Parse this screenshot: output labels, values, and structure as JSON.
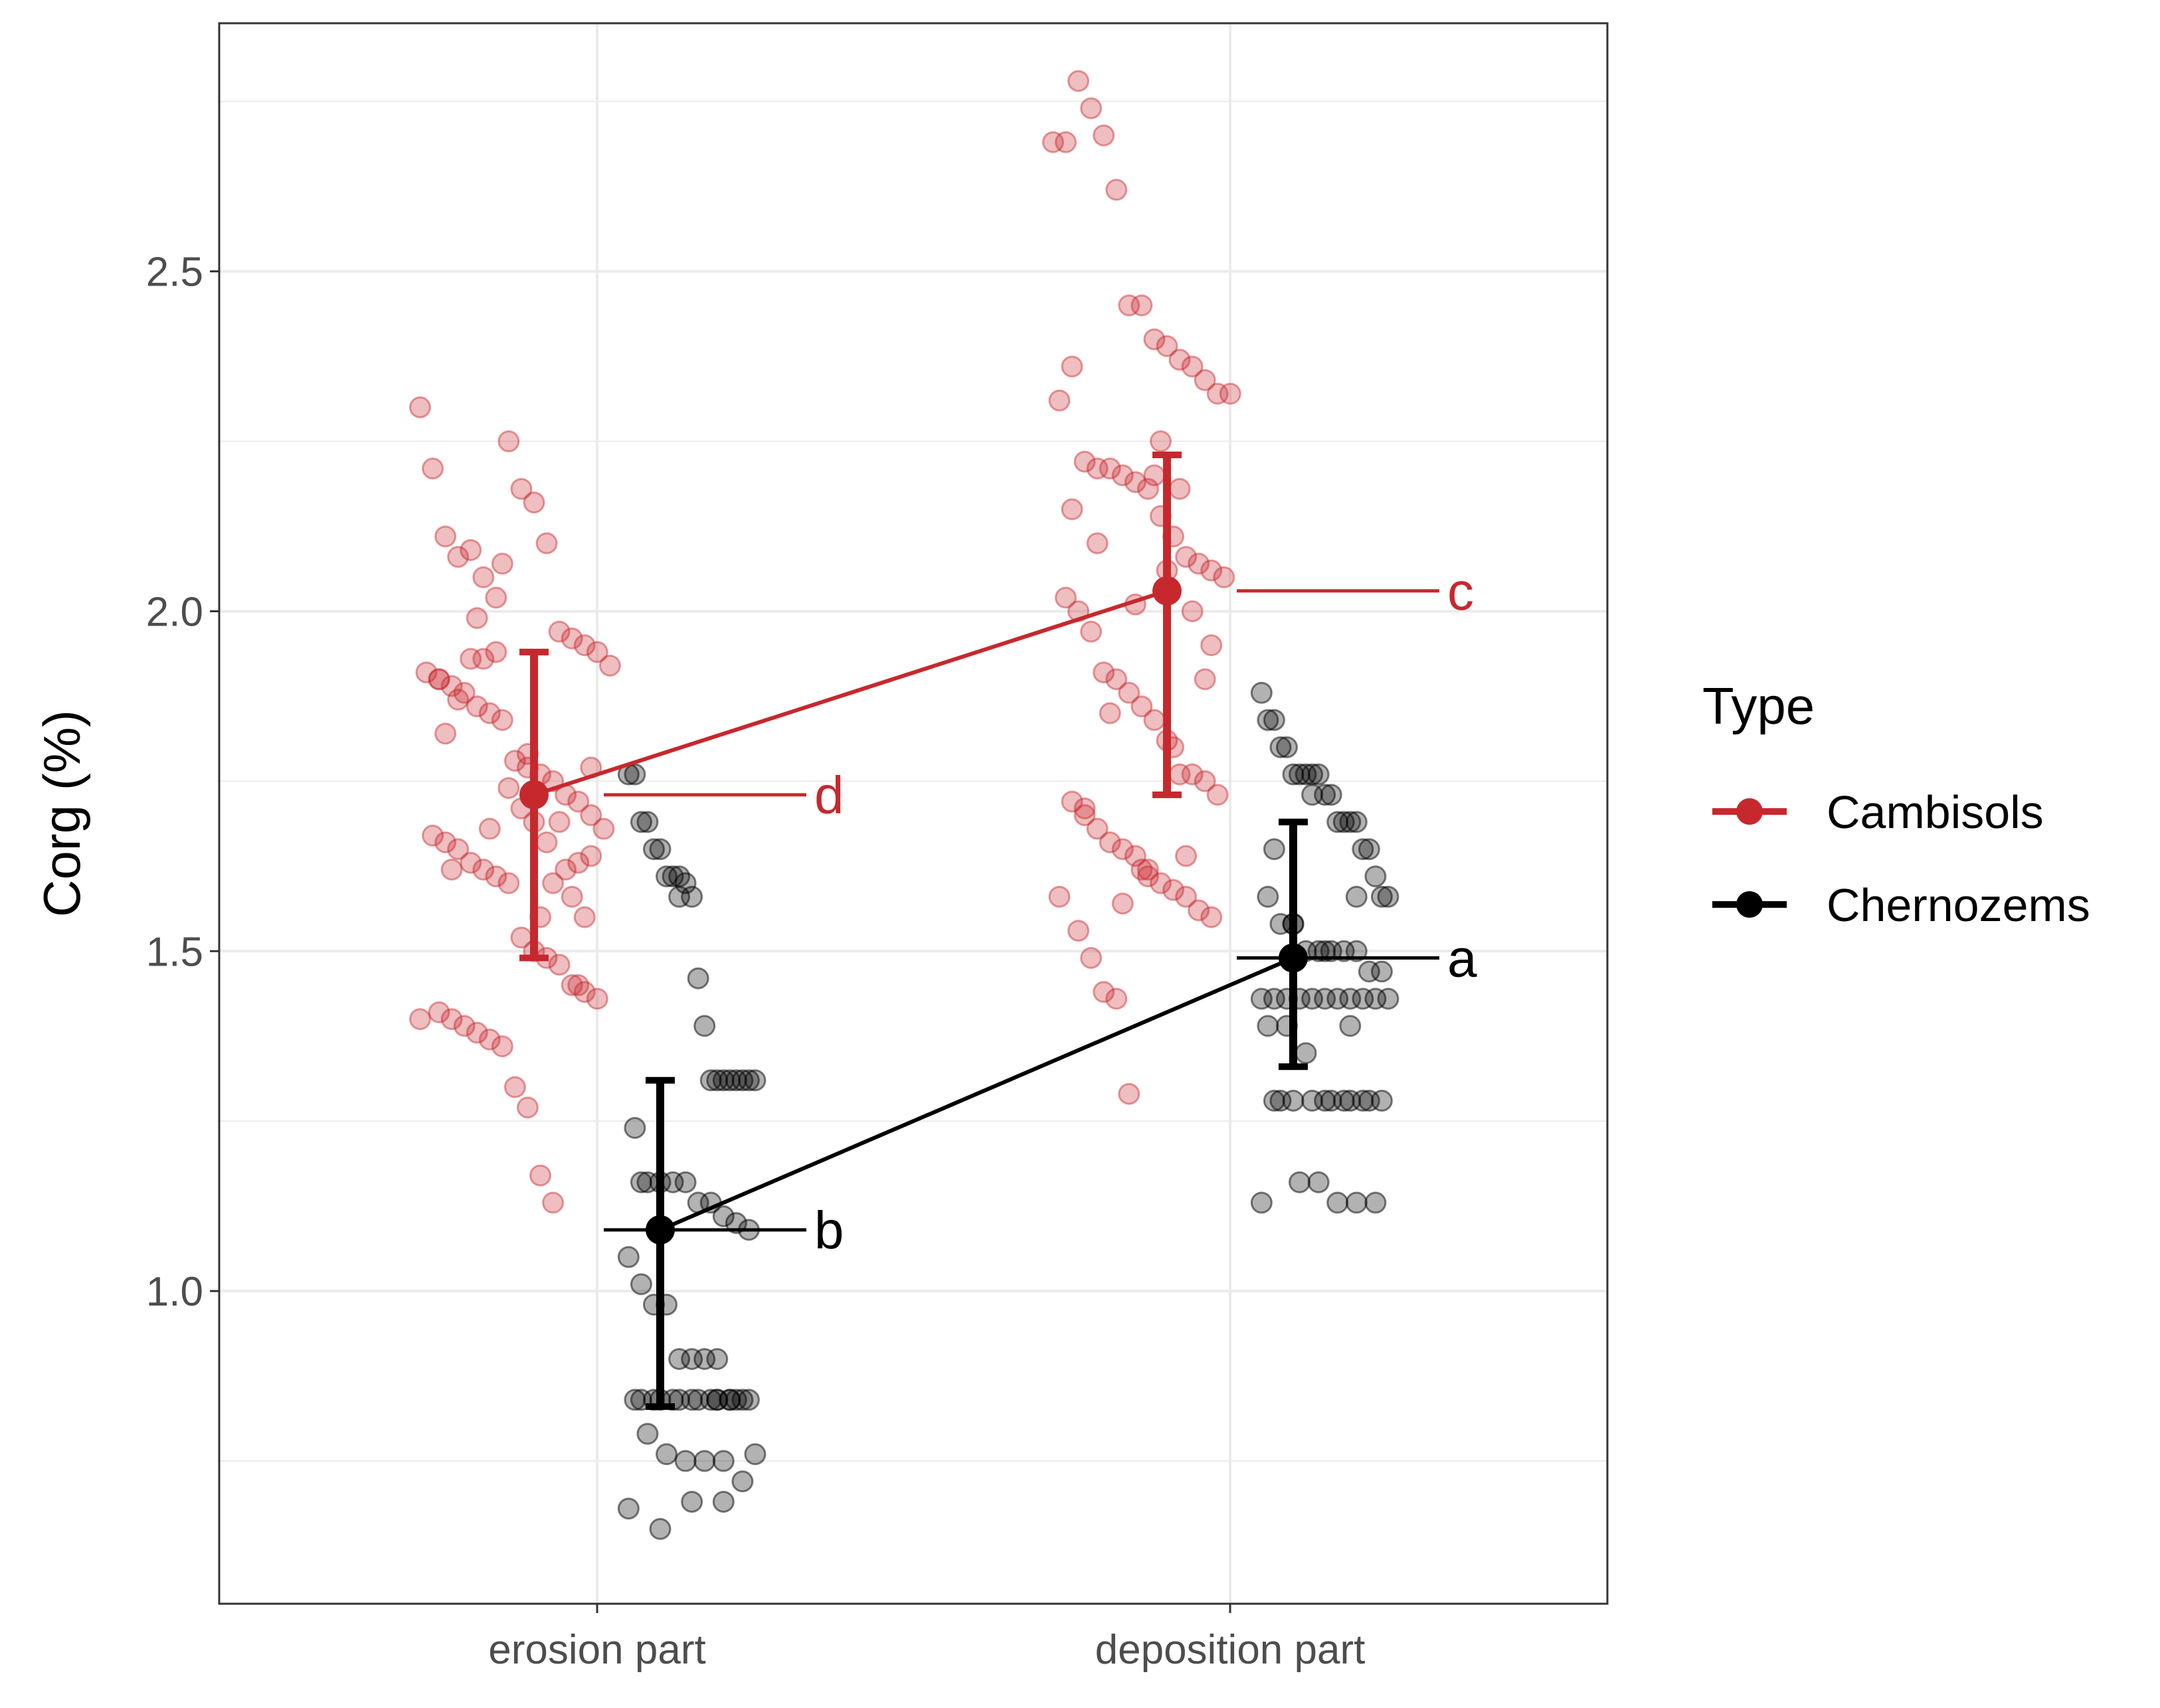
{
  "chart_data": {
    "type": "scatter",
    "title": "",
    "xlabel": "",
    "ylabel": "Corg (%)",
    "categories": [
      "erosion part",
      "deposition part"
    ],
    "yticks": [
      1.0,
      1.5,
      2.0,
      2.5
    ],
    "ytick_labels": [
      "1.0",
      "1.5",
      "2.0",
      "2.5"
    ],
    "ylim": [
      0.54,
      2.865
    ],
    "grid": true,
    "legend": {
      "title": "Type",
      "position": "right",
      "entries": [
        "Cambisols",
        "Chernozems"
      ]
    },
    "colors": {
      "Cambisols": "#c7282d",
      "Chernozems": "#000000"
    },
    "series": [
      {
        "name": "Cambisols",
        "means": [
          1.73,
          2.03
        ],
        "ci_lower": [
          1.49,
          1.73
        ],
        "ci_upper": [
          1.94,
          2.23
        ],
        "letters": [
          "d",
          "c"
        ],
        "points": [
          {
            "x": [
              0.82,
              0.84,
              0.86,
              0.88,
              0.9,
              0.92,
              0.94,
              0.96,
              0.98,
              1.0,
              1.02,
              1.04,
              1.06,
              1.08,
              1.1,
              1.12,
              0.83,
              0.85,
              0.87,
              0.89,
              0.91,
              0.93,
              0.95,
              0.97,
              0.99,
              1.01,
              1.03,
              1.05,
              1.07,
              1.09,
              1.11,
              0.84,
              0.86,
              0.88,
              0.9,
              0.92,
              0.94,
              0.96,
              0.98,
              1.0,
              1.02,
              1.04,
              1.06,
              1.08,
              1.1,
              0.85,
              0.87,
              0.89,
              0.91,
              0.93,
              0.95,
              0.97,
              0.99,
              1.01,
              1.03,
              1.05,
              1.07,
              1.09,
              0.86,
              0.88,
              0.9,
              0.92,
              0.94,
              0.96,
              0.98,
              1.0,
              1.02,
              1.04,
              1.06,
              1.08,
              0.82,
              0.87,
              0.91,
              0.95,
              0.99,
              1.03,
              1.07,
              0.85,
              0.93,
              1.01,
              1.09
            ],
            "y": [
              2.3,
              2.21,
              2.11,
              2.08,
              2.09,
              2.05,
              2.02,
              2.25,
              2.18,
              2.16,
              2.1,
              1.97,
              1.96,
              1.95,
              1.94,
              1.92,
              1.91,
              1.9,
              1.89,
              1.88,
              1.86,
              1.85,
              1.84,
              1.78,
              1.77,
              1.76,
              1.75,
              1.73,
              1.72,
              1.7,
              1.68,
              1.67,
              1.66,
              1.65,
              1.63,
              1.62,
              1.61,
              1.6,
              1.52,
              1.5,
              1.49,
              1.48,
              1.45,
              1.44,
              1.43,
              1.41,
              1.4,
              1.39,
              1.38,
              1.37,
              1.36,
              1.3,
              1.27,
              1.17,
              1.13,
              1.62,
              1.63,
              1.64,
              1.82,
              1.87,
              1.93,
              1.93,
              1.94,
              1.74,
              1.71,
              1.69,
              1.66,
              1.69,
              1.58,
              1.55,
              1.4,
              1.62,
              1.99,
              2.07,
              1.79,
              1.6,
              1.45,
              1.9,
              1.68,
              1.55,
              1.77
            ]
          },
          {
            "x": [
              1.82,
              1.84,
              1.86,
              1.88,
              1.9,
              1.92,
              1.94,
              1.96,
              1.98,
              2.0,
              2.02,
              2.04,
              2.06,
              2.08,
              2.1,
              1.83,
              1.85,
              1.87,
              1.89,
              1.91,
              1.93,
              1.95,
              1.97,
              1.99,
              2.01,
              2.03,
              2.05,
              2.07,
              2.09,
              1.84,
              1.86,
              1.88,
              1.9,
              1.92,
              1.94,
              1.96,
              1.98,
              2.0,
              2.02,
              2.04,
              2.06,
              2.08,
              1.85,
              1.87,
              1.89,
              1.91,
              1.93,
              1.95,
              1.97,
              1.99,
              2.01,
              2.03,
              2.05,
              2.07,
              1.86,
              1.88,
              1.9,
              1.92,
              1.94,
              1.96,
              1.98,
              2.0,
              2.02,
              2.04,
              2.06,
              1.83,
              1.87,
              1.91,
              1.95,
              1.99,
              2.03,
              2.07,
              1.85,
              1.93,
              2.01,
              1.89,
              1.97
            ],
            "y": [
              2.69,
              2.69,
              2.78,
              2.74,
              2.7,
              2.62,
              2.45,
              2.45,
              2.4,
              2.39,
              2.37,
              2.36,
              2.34,
              2.32,
              2.32,
              2.31,
              2.36,
              2.22,
              2.21,
              2.21,
              2.2,
              2.19,
              2.18,
              2.14,
              2.11,
              2.08,
              2.07,
              2.06,
              2.05,
              2.02,
              2.0,
              1.97,
              1.91,
              1.9,
              1.88,
              1.86,
              1.84,
              1.81,
              1.76,
              1.76,
              1.75,
              1.73,
              1.72,
              1.71,
              1.68,
              1.66,
              1.65,
              1.64,
              1.62,
              1.6,
              1.59,
              1.58,
              1.56,
              1.55,
              1.53,
              1.49,
              1.44,
              1.43,
              1.29,
              1.62,
              2.2,
              2.06,
              2.18,
              2.0,
              1.9,
              1.58,
              1.7,
              1.85,
              2.01,
              2.25,
              1.64,
              1.95,
              2.15,
              1.57,
              1.8,
              2.1,
              1.61
            ]
          }
        ]
      },
      {
        "name": "Chernozems",
        "means": [
          1.09,
          1.49
        ],
        "ci_lower": [
          0.83,
          1.33
        ],
        "ci_upper": [
          1.31,
          1.69
        ],
        "letters": [
          "b",
          "a"
        ],
        "points": [
          {
            "x": [
              0.95,
              0.96,
              0.97,
              0.98,
              0.99,
              1.0,
              1.01,
              1.02,
              1.03,
              1.04,
              1.05,
              1.06,
              1.07,
              1.08,
              1.09,
              1.1,
              1.11,
              1.12,
              1.13,
              1.14,
              1.15,
              0.96,
              0.98,
              1.0,
              1.02,
              1.04,
              1.06,
              1.08,
              1.1,
              1.12,
              1.14,
              0.95,
              0.97,
              0.99,
              1.01,
              1.03,
              1.05,
              1.07,
              1.09,
              1.11,
              1.13,
              0.96,
              0.99,
              1.02,
              1.05,
              1.08,
              1.11,
              1.14,
              0.97,
              1.0,
              1.03,
              1.06,
              1.09,
              1.12,
              0.98,
              1.01,
              1.04,
              1.07,
              1.1,
              1.13,
              0.95,
              1.0,
              1.05,
              1.1,
              1.15,
              0.97,
              1.03,
              1.09
            ],
            "y": [
              1.76,
              1.76,
              1.69,
              1.69,
              1.65,
              1.65,
              1.61,
              1.61,
              1.61,
              1.6,
              1.58,
              1.46,
              1.39,
              1.31,
              1.31,
              1.31,
              1.31,
              1.31,
              1.31,
              1.31,
              1.31,
              1.24,
              1.16,
              1.16,
              1.16,
              1.16,
              1.13,
              1.13,
              1.11,
              1.1,
              1.09,
              1.05,
              1.01,
              0.98,
              0.98,
              0.9,
              0.9,
              0.9,
              0.84,
              0.84,
              0.84,
              0.84,
              0.84,
              0.84,
              0.84,
              0.84,
              0.84,
              0.84,
              0.84,
              0.84,
              0.84,
              0.84,
              0.84,
              0.84,
              0.79,
              0.76,
              0.75,
              0.75,
              0.75,
              0.72,
              0.68,
              0.65,
              0.69,
              0.69,
              0.76,
              1.16,
              1.58,
              0.9
            ]
          },
          {
            "x": [
              1.95,
              1.96,
              1.97,
              1.98,
              1.99,
              2.0,
              2.01,
              2.02,
              2.03,
              2.04,
              2.05,
              2.06,
              2.07,
              2.08,
              2.09,
              2.1,
              2.11,
              2.12,
              2.13,
              2.14,
              2.15,
              1.96,
              1.98,
              2.0,
              2.02,
              2.04,
              2.06,
              2.08,
              2.1,
              2.12,
              2.14,
              1.95,
              1.97,
              1.99,
              2.01,
              2.03,
              2.05,
              2.07,
              2.09,
              2.11,
              2.13,
              1.96,
              1.99,
              2.02,
              2.05,
              2.08,
              2.11,
              2.14,
              1.97,
              2.0,
              2.03,
              2.06,
              2.09,
              2.12,
              1.98,
              2.01,
              2.04,
              2.07,
              2.1,
              2.13,
              1.95,
              2.0,
              2.05,
              2.1,
              2.15,
              1.97,
              2.03,
              2.09
            ],
            "y": [
              1.88,
              1.84,
              1.84,
              1.8,
              1.8,
              1.76,
              1.76,
              1.76,
              1.76,
              1.76,
              1.73,
              1.73,
              1.69,
              1.69,
              1.69,
              1.69,
              1.65,
              1.65,
              1.61,
              1.58,
              1.58,
              1.58,
              1.54,
              1.54,
              1.5,
              1.5,
              1.5,
              1.5,
              1.5,
              1.47,
              1.47,
              1.43,
              1.43,
              1.43,
              1.43,
              1.43,
              1.43,
              1.43,
              1.43,
              1.43,
              1.43,
              1.39,
              1.39,
              1.35,
              1.28,
              1.28,
              1.28,
              1.28,
              1.28,
              1.28,
              1.28,
              1.28,
              1.28,
              1.28,
              1.28,
              1.16,
              1.16,
              1.13,
              1.13,
              1.13,
              1.13,
              1.54,
              1.5,
              1.58,
              1.43,
              1.65,
              1.73,
              1.39
            ]
          }
        ]
      }
    ]
  }
}
